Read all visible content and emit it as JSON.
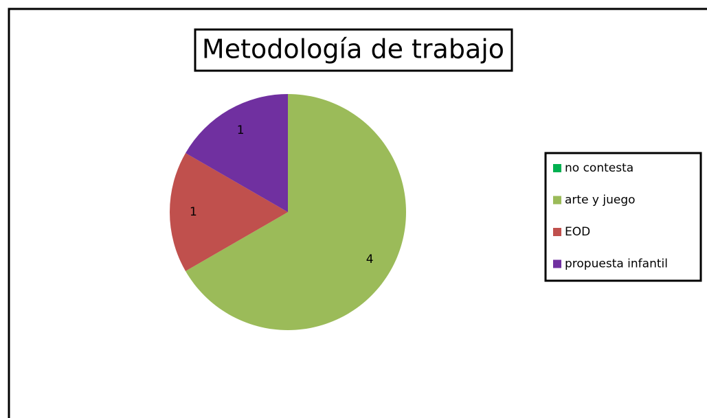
{
  "chart_data": {
    "type": "pie",
    "title": "Metodología de trabajo",
    "categories": [
      "no contesta",
      "arte y juego",
      "EOD",
      "propuesta infantil"
    ],
    "values": [
      0,
      4,
      1,
      1
    ],
    "colors": [
      "#00b050",
      "#9bbb59",
      "#c0504d",
      "#7030a0"
    ],
    "legend": "right"
  }
}
